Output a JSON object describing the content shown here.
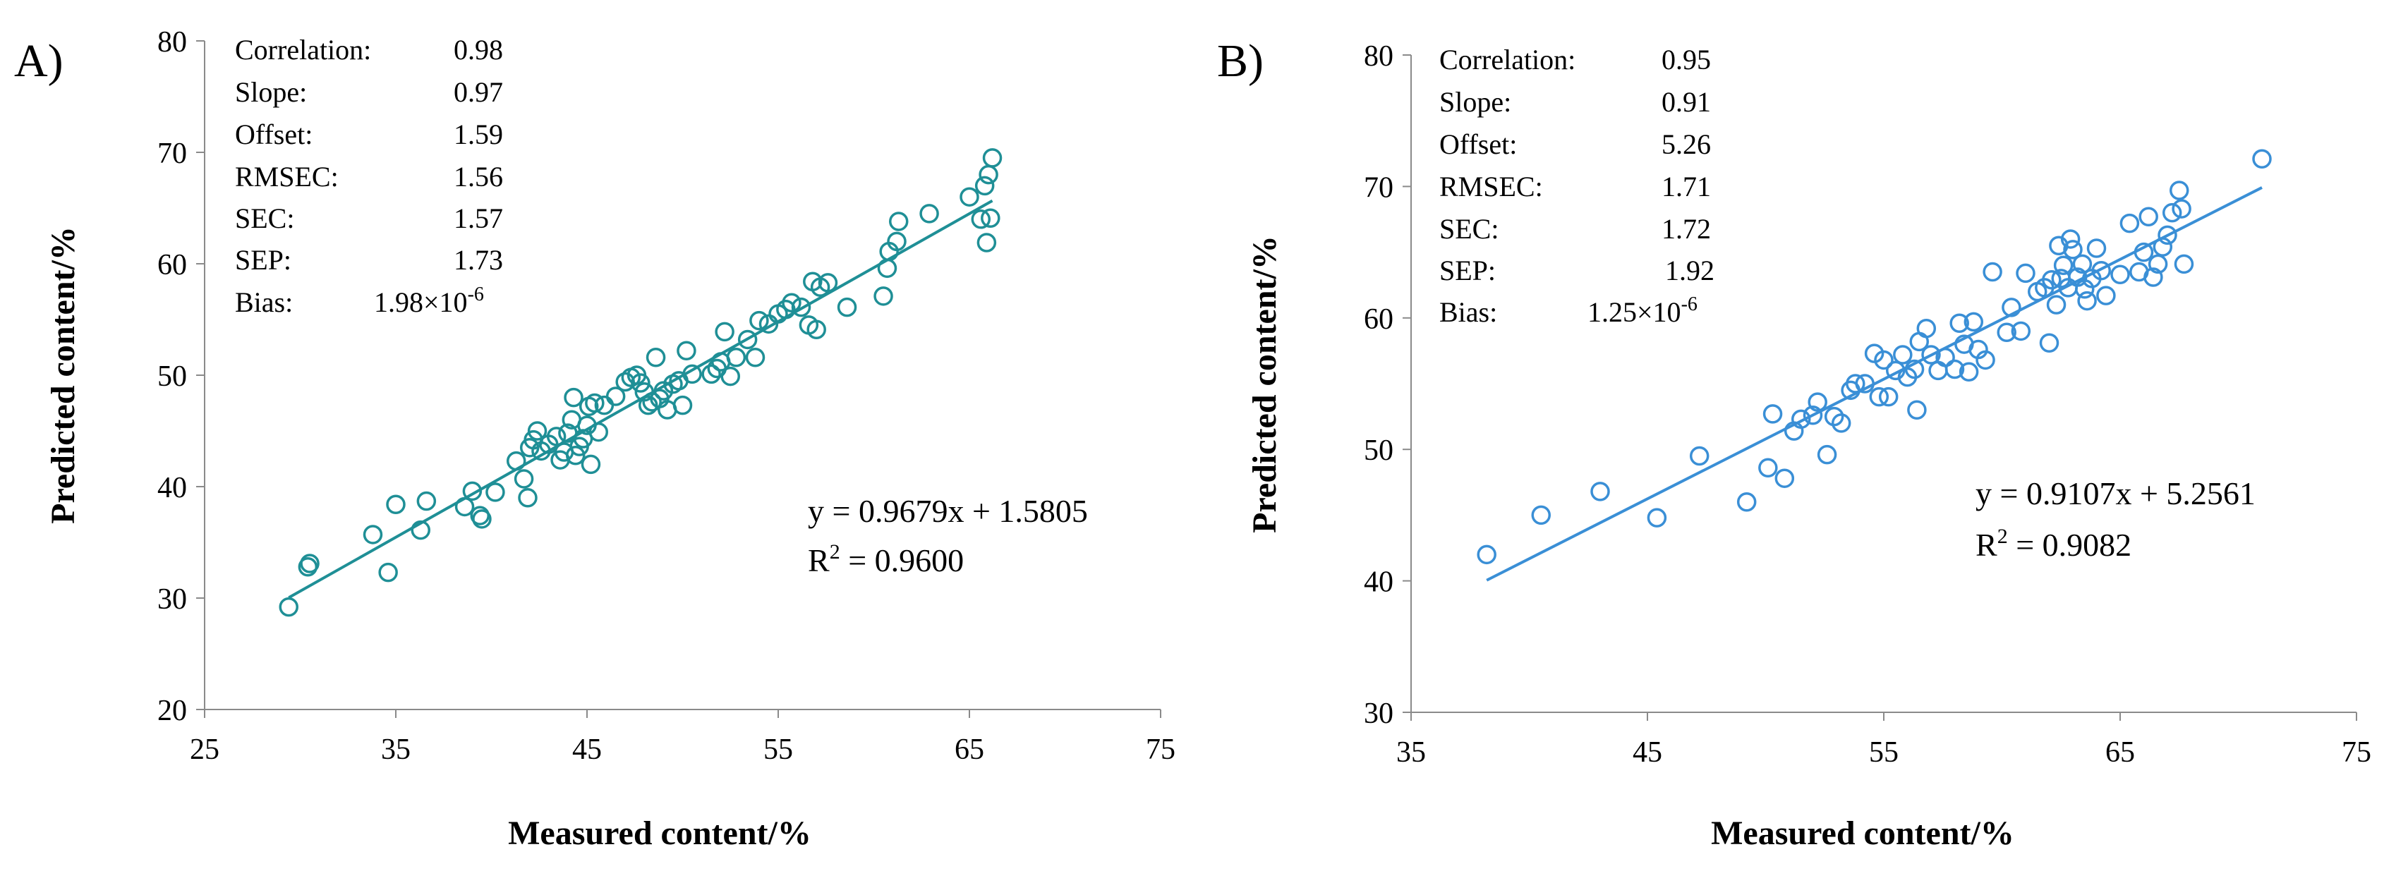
{
  "chart_data": [
    {
      "type": "scatter",
      "panel_label": "A)",
      "xlabel": "Measured content/%",
      "ylabel": "Predicted content/%",
      "xlim": [
        25,
        75
      ],
      "ylim": [
        20,
        80
      ],
      "x_ticks": [
        25,
        35,
        45,
        55,
        65,
        75
      ],
      "y_ticks": [
        20,
        30,
        40,
        50,
        60,
        70,
        80
      ],
      "color": "#1f8f96",
      "grid": false,
      "stats": [
        {
          "label": "Correlation:",
          "value": "0.98"
        },
        {
          "label": "Slope:",
          "value": "0.97"
        },
        {
          "label": "Offset:",
          "value": "1.59"
        },
        {
          "label": "RMSEC:",
          "value": "1.56"
        },
        {
          "label": "SEC:",
          "value": "1.57"
        },
        {
          "label": "SEP:",
          "value": "1.73"
        },
        {
          "label": "Bias:",
          "value": "1.98×10",
          "exp": "-6"
        }
      ],
      "equation": "y = 0.9679x + 1.5805",
      "r2_prefix": "R",
      "r2_sup": "2",
      "r2_value": " = 0.9600",
      "trendline": {
        "slope": 0.9679,
        "intercept": 1.5805,
        "x_range": [
          29.4,
          66.2
        ]
      },
      "points": [
        [
          29.4,
          29.2
        ],
        [
          30.4,
          32.8
        ],
        [
          30.5,
          33.1
        ],
        [
          33.8,
          35.7
        ],
        [
          34.6,
          32.3
        ],
        [
          35.0,
          38.4
        ],
        [
          36.3,
          36.1
        ],
        [
          36.6,
          38.7
        ],
        [
          38.6,
          38.2
        ],
        [
          39.0,
          39.6
        ],
        [
          39.4,
          37.4
        ],
        [
          39.5,
          37.1
        ],
        [
          40.2,
          39.5
        ],
        [
          41.3,
          42.3
        ],
        [
          41.7,
          40.7
        ],
        [
          41.9,
          39.0
        ],
        [
          42.0,
          43.5
        ],
        [
          42.2,
          44.2
        ],
        [
          42.4,
          45.0
        ],
        [
          42.6,
          43.2
        ],
        [
          43.0,
          43.8
        ],
        [
          43.4,
          44.5
        ],
        [
          43.6,
          42.4
        ],
        [
          43.8,
          43.1
        ],
        [
          44.0,
          44.8
        ],
        [
          44.2,
          46.0
        ],
        [
          44.3,
          48.0
        ],
        [
          44.4,
          42.8
        ],
        [
          44.6,
          43.6
        ],
        [
          44.8,
          44.3
        ],
        [
          45.0,
          45.5
        ],
        [
          45.1,
          47.2
        ],
        [
          45.2,
          42.0
        ],
        [
          45.4,
          47.5
        ],
        [
          45.6,
          44.9
        ],
        [
          45.9,
          47.3
        ],
        [
          46.5,
          48.1
        ],
        [
          47.0,
          49.4
        ],
        [
          47.3,
          49.8
        ],
        [
          47.6,
          50.0
        ],
        [
          47.8,
          49.3
        ],
        [
          48.0,
          48.5
        ],
        [
          48.2,
          47.3
        ],
        [
          48.4,
          47.6
        ],
        [
          48.6,
          51.6
        ],
        [
          48.8,
          47.9
        ],
        [
          49.0,
          48.6
        ],
        [
          49.2,
          46.9
        ],
        [
          49.5,
          49.2
        ],
        [
          49.8,
          49.5
        ],
        [
          50.0,
          47.3
        ],
        [
          50.2,
          52.2
        ],
        [
          50.5,
          50.1
        ],
        [
          51.5,
          50.1
        ],
        [
          51.8,
          50.6
        ],
        [
          52.0,
          51.2
        ],
        [
          52.2,
          53.9
        ],
        [
          52.5,
          49.9
        ],
        [
          52.8,
          51.6
        ],
        [
          53.4,
          53.2
        ],
        [
          53.8,
          51.6
        ],
        [
          54.0,
          54.9
        ],
        [
          54.5,
          54.6
        ],
        [
          55.0,
          55.5
        ],
        [
          55.4,
          55.9
        ],
        [
          55.7,
          56.5
        ],
        [
          56.2,
          56.1
        ],
        [
          56.6,
          54.5
        ],
        [
          56.8,
          58.4
        ],
        [
          57.0,
          54.1
        ],
        [
          57.2,
          57.9
        ],
        [
          57.6,
          58.3
        ],
        [
          58.6,
          56.1
        ],
        [
          60.5,
          57.1
        ],
        [
          60.7,
          59.6
        ],
        [
          60.8,
          61.1
        ],
        [
          61.2,
          62.0
        ],
        [
          61.3,
          63.8
        ],
        [
          62.9,
          64.5
        ],
        [
          65.0,
          66.0
        ],
        [
          65.6,
          64.0
        ],
        [
          65.8,
          67.0
        ],
        [
          65.9,
          61.9
        ],
        [
          66.0,
          68.0
        ],
        [
          66.1,
          64.1
        ],
        [
          66.2,
          69.5
        ]
      ]
    },
    {
      "type": "scatter",
      "panel_label": "B)",
      "xlabel": "Measured content/%",
      "ylabel": "Predicted content/%",
      "xlim": [
        35,
        75
      ],
      "ylim": [
        30,
        80
      ],
      "x_ticks": [
        35,
        45,
        55,
        65,
        75
      ],
      "y_ticks": [
        30,
        40,
        50,
        60,
        70,
        80
      ],
      "color": "#3a8fd6",
      "grid": false,
      "stats": [
        {
          "label": "Correlation:",
          "value": "0.95"
        },
        {
          "label": "Slope:",
          "value": "0.91"
        },
        {
          "label": "Offset:",
          "value": "5.26"
        },
        {
          "label": "RMSEC:",
          "value": "1.71"
        },
        {
          "label": "SEC:",
          "value": "1.72"
        },
        {
          "label": "SEP:",
          "value": "1.92"
        },
        {
          "label": "Bias:",
          "value": "1.25×10",
          "exp": "-6"
        }
      ],
      "equation": "y = 0.9107x + 5.2561",
      "r2_prefix": "R",
      "r2_sup": "2",
      "r2_value": " = 0.9082",
      "trendline": {
        "slope": 0.9107,
        "intercept": 5.2561,
        "x_range": [
          38.2,
          71.0
        ]
      },
      "points": [
        [
          38.2,
          42.0
        ],
        [
          40.5,
          45.0
        ],
        [
          43.0,
          46.8
        ],
        [
          45.4,
          44.8
        ],
        [
          47.2,
          49.5
        ],
        [
          49.2,
          46.0
        ],
        [
          50.1,
          48.6
        ],
        [
          50.3,
          52.7
        ],
        [
          50.8,
          47.8
        ],
        [
          51.2,
          51.4
        ],
        [
          51.5,
          52.3
        ],
        [
          52.0,
          52.6
        ],
        [
          52.2,
          53.6
        ],
        [
          52.6,
          49.6
        ],
        [
          52.9,
          52.5
        ],
        [
          53.2,
          52.0
        ],
        [
          53.6,
          54.5
        ],
        [
          53.8,
          55.0
        ],
        [
          54.2,
          55.0
        ],
        [
          54.6,
          57.3
        ],
        [
          54.8,
          54.0
        ],
        [
          55.0,
          56.8
        ],
        [
          55.2,
          54.0
        ],
        [
          55.5,
          56.0
        ],
        [
          55.8,
          57.2
        ],
        [
          56.0,
          55.5
        ],
        [
          56.3,
          56.1
        ],
        [
          56.4,
          53.0
        ],
        [
          56.5,
          58.2
        ],
        [
          56.8,
          59.2
        ],
        [
          57.0,
          57.2
        ],
        [
          57.3,
          56.0
        ],
        [
          57.6,
          57.0
        ],
        [
          58.0,
          56.1
        ],
        [
          58.2,
          59.6
        ],
        [
          58.4,
          58.0
        ],
        [
          58.6,
          55.9
        ],
        [
          58.8,
          59.7
        ],
        [
          59.0,
          57.6
        ],
        [
          59.3,
          56.8
        ],
        [
          59.6,
          63.5
        ],
        [
          60.2,
          58.9
        ],
        [
          60.4,
          60.8
        ],
        [
          60.8,
          59.0
        ],
        [
          61.0,
          63.4
        ],
        [
          61.5,
          62.0
        ],
        [
          61.8,
          62.3
        ],
        [
          62.0,
          58.1
        ],
        [
          62.1,
          62.9
        ],
        [
          62.3,
          61.0
        ],
        [
          62.4,
          65.5
        ],
        [
          62.5,
          63.0
        ],
        [
          62.6,
          64.0
        ],
        [
          62.8,
          62.3
        ],
        [
          62.9,
          66.0
        ],
        [
          63.0,
          65.2
        ],
        [
          63.2,
          63.1
        ],
        [
          63.4,
          64.1
        ],
        [
          63.5,
          62.2
        ],
        [
          63.6,
          61.3
        ],
        [
          63.8,
          63.0
        ],
        [
          64.0,
          65.3
        ],
        [
          64.2,
          63.6
        ],
        [
          64.4,
          61.7
        ],
        [
          65.0,
          63.3
        ],
        [
          65.4,
          67.2
        ],
        [
          65.8,
          63.5
        ],
        [
          66.0,
          65.0
        ],
        [
          66.2,
          67.7
        ],
        [
          66.4,
          63.1
        ],
        [
          66.6,
          64.1
        ],
        [
          66.8,
          65.4
        ],
        [
          67.0,
          66.3
        ],
        [
          67.2,
          68.0
        ],
        [
          67.5,
          69.7
        ],
        [
          67.6,
          68.3
        ],
        [
          67.7,
          64.1
        ],
        [
          71.0,
          72.1
        ]
      ]
    }
  ]
}
